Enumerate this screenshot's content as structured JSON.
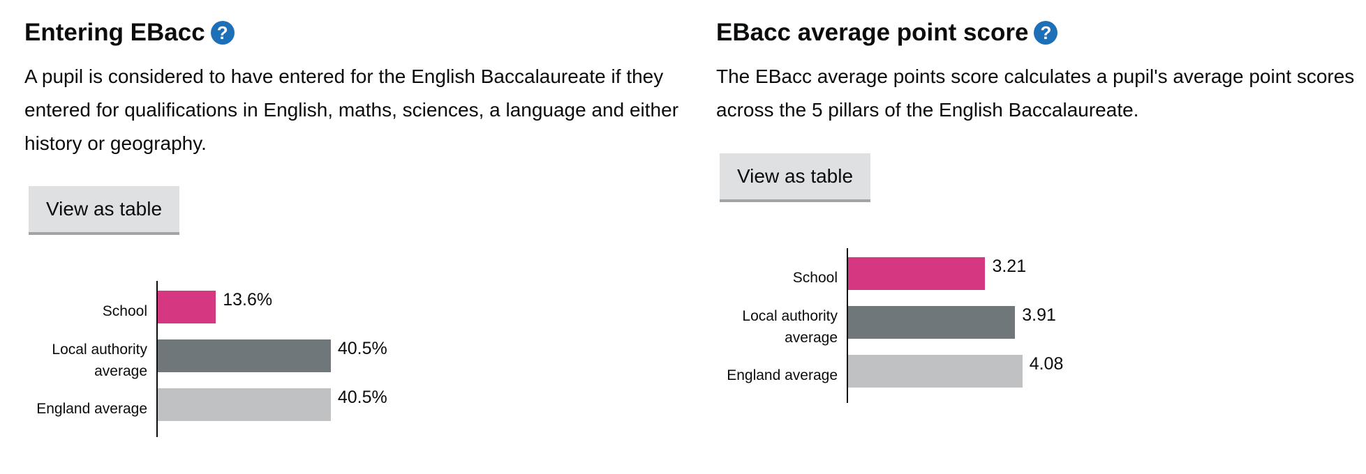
{
  "chart_data": [
    {
      "type": "bar",
      "orientation": "horizontal",
      "title": "Entering EBacc",
      "description": "A pupil is considered to have entered for the English Baccalaureate if they entered for qualifications in English, maths, sciences, a language and either history or geography.",
      "button": "View as table",
      "categories": [
        "School",
        "Local authority average",
        "England average"
      ],
      "values": [
        13.6,
        40.5,
        40.5
      ],
      "value_labels": [
        "13.6%",
        "40.5%",
        "40.5%"
      ],
      "colors": [
        "#d53880",
        "#6f777b",
        "#bfc1c3"
      ],
      "xlim": [
        0,
        50
      ]
    },
    {
      "type": "bar",
      "orientation": "horizontal",
      "title": "EBacc average point score",
      "description": "The EBacc average points score calculates a pupil's average point scores across the 5 pillars of the English Baccalaureate.",
      "button": "View as table",
      "categories": [
        "School",
        "Local authority average",
        "England average"
      ],
      "values": [
        3.21,
        3.91,
        4.08
      ],
      "colors": [
        "#d53880",
        "#6f777b",
        "#bfc1c3"
      ],
      "xlim": [
        0,
        5
      ]
    }
  ]
}
